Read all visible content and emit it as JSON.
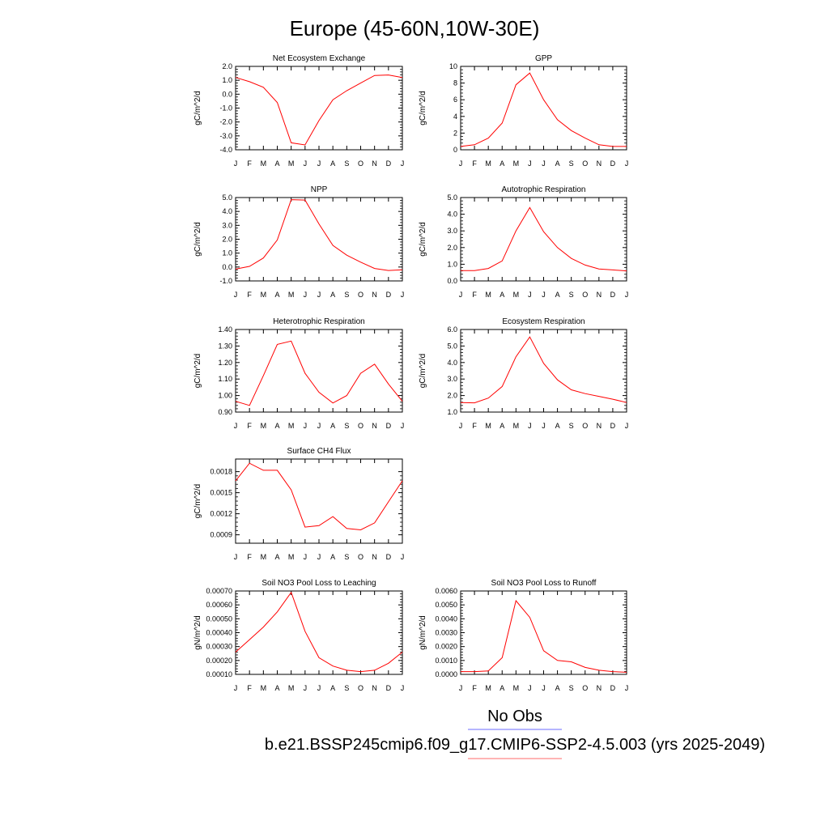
{
  "title": "Europe (45-60N,10W-30E)",
  "legend": {
    "entries": [
      {
        "label": "No Obs",
        "color": "#6b6bff"
      },
      {
        "label": "b.e21.BSSP245cmip6.f09_g17.CMIP6-SSP2-4.5.003 (yrs 2025-2049)",
        "color": "#ff6b6b"
      }
    ]
  },
  "colors": {
    "line": "#ff0000"
  },
  "chart_data": [
    {
      "type": "line",
      "title": "Net Ecosystem Exchange",
      "ylabel": "gC/m^2/d",
      "categories": [
        "J",
        "F",
        "M",
        "A",
        "M",
        "J",
        "J",
        "A",
        "S",
        "O",
        "N",
        "D",
        "J"
      ],
      "ylim": [
        -4.0,
        2.0
      ],
      "yticks": [
        2.0,
        1.0,
        0.0,
        -1.0,
        -2.0,
        -3.0,
        -4.0
      ],
      "ytick_labels": [
        "2.0",
        "1.0",
        "0.0",
        "-1.0",
        "-2.0",
        "-3.0",
        "-4.0"
      ],
      "series": [
        {
          "values": [
            1.2,
            0.9,
            0.5,
            -0.6,
            -3.5,
            -3.65,
            -1.9,
            -0.4,
            0.25,
            0.8,
            1.35,
            1.38,
            1.2
          ]
        }
      ]
    },
    {
      "type": "line",
      "title": "GPP",
      "ylabel": "gC/m^2/d",
      "categories": [
        "J",
        "F",
        "M",
        "A",
        "M",
        "J",
        "J",
        "A",
        "S",
        "O",
        "N",
        "D",
        "J"
      ],
      "ylim": [
        0,
        10
      ],
      "yticks": [
        10,
        8,
        6,
        4,
        2,
        0
      ],
      "ytick_labels": [
        "10",
        "8",
        "6",
        "4",
        "2",
        "0"
      ],
      "series": [
        {
          "values": [
            0.4,
            0.6,
            1.4,
            3.2,
            7.8,
            9.2,
            6.0,
            3.6,
            2.3,
            1.4,
            0.6,
            0.4,
            0.4
          ]
        }
      ]
    },
    {
      "type": "line",
      "title": "NPP",
      "ylabel": "gC/m^2/d",
      "categories": [
        "J",
        "F",
        "M",
        "A",
        "M",
        "J",
        "J",
        "A",
        "S",
        "O",
        "N",
        "D",
        "J"
      ],
      "ylim": [
        -1.0,
        5.0
      ],
      "yticks": [
        5.0,
        4.0,
        3.0,
        2.0,
        1.0,
        0.0,
        -1.0
      ],
      "ytick_labels": [
        "5.0",
        "4.0",
        "3.0",
        "2.0",
        "1.0",
        "0.0",
        "-1.0"
      ],
      "series": [
        {
          "values": [
            -0.15,
            0.05,
            0.65,
            1.95,
            4.85,
            4.82,
            3.1,
            1.55,
            0.85,
            0.35,
            -0.1,
            -0.25,
            -0.2
          ]
        }
      ]
    },
    {
      "type": "line",
      "title": "Autotrophic Respiration",
      "ylabel": "gC/m^2/d",
      "categories": [
        "J",
        "F",
        "M",
        "A",
        "M",
        "J",
        "J",
        "A",
        "S",
        "O",
        "N",
        "D",
        "J"
      ],
      "ylim": [
        0,
        5.0
      ],
      "yticks": [
        5.0,
        4.0,
        3.0,
        2.0,
        1.0,
        0.0
      ],
      "ytick_labels": [
        "5.0",
        "4.0",
        "3.0",
        "2.0",
        "1.0",
        "0.0"
      ],
      "series": [
        {
          "values": [
            0.62,
            0.62,
            0.75,
            1.2,
            3.0,
            4.4,
            2.95,
            2.0,
            1.35,
            0.95,
            0.72,
            0.66,
            0.6
          ]
        }
      ]
    },
    {
      "type": "line",
      "title": "Heterotrophic Respiration",
      "ylabel": "gC/m^2/d",
      "categories": [
        "J",
        "F",
        "M",
        "A",
        "M",
        "J",
        "J",
        "A",
        "S",
        "O",
        "N",
        "D",
        "J"
      ],
      "ylim": [
        0.9,
        1.4
      ],
      "yticks": [
        1.4,
        1.3,
        1.2,
        1.1,
        1.0,
        0.9
      ],
      "ytick_labels": [
        "1.40",
        "1.30",
        "1.20",
        "1.10",
        "1.00",
        "0.90"
      ],
      "series": [
        {
          "values": [
            0.965,
            0.94,
            1.12,
            1.31,
            1.33,
            1.135,
            1.02,
            0.955,
            1.0,
            1.135,
            1.19,
            1.07,
            0.965
          ]
        }
      ]
    },
    {
      "type": "line",
      "title": "Ecosystem Respiration",
      "ylabel": "gC/m^2/d",
      "categories": [
        "J",
        "F",
        "M",
        "A",
        "M",
        "J",
        "J",
        "A",
        "S",
        "O",
        "N",
        "D",
        "J"
      ],
      "ylim": [
        1.0,
        6.0
      ],
      "yticks": [
        6.0,
        5.0,
        4.0,
        3.0,
        2.0,
        1.0
      ],
      "ytick_labels": [
        "6.0",
        "5.0",
        "4.0",
        "3.0",
        "2.0",
        "1.0"
      ],
      "series": [
        {
          "values": [
            1.58,
            1.56,
            1.85,
            2.55,
            4.35,
            5.55,
            3.95,
            2.95,
            2.35,
            2.12,
            1.95,
            1.78,
            1.58
          ]
        }
      ]
    },
    {
      "type": "line",
      "title": "Surface CH4 Flux",
      "ylabel": "gC/m^2/d",
      "categories": [
        "J",
        "F",
        "M",
        "A",
        "M",
        "J",
        "J",
        "A",
        "S",
        "O",
        "N",
        "D",
        "J"
      ],
      "ylim": [
        0.00078,
        0.00198
      ],
      "yticks": [
        0.0018,
        0.0015,
        0.0012,
        0.0009
      ],
      "ytick_labels": [
        "0.0018",
        "0.0015",
        "0.0012",
        "0.0009"
      ],
      "series": [
        {
          "values": [
            0.00167,
            0.00192,
            0.00182,
            0.00182,
            0.00154,
            0.00101,
            0.00103,
            0.00116,
            0.00099,
            0.00097,
            0.00107,
            0.00137,
            0.00167
          ]
        }
      ]
    },
    {
      "type": "line",
      "title": "Soil NO3 Pool Loss to Leaching",
      "ylabel": "gN/m^2/d",
      "categories": [
        "J",
        "F",
        "M",
        "A",
        "M",
        "J",
        "J",
        "A",
        "S",
        "O",
        "N",
        "D",
        "J"
      ],
      "ylim": [
        0.0001,
        0.0007
      ],
      "yticks": [
        0.0007,
        0.0006,
        0.0005,
        0.0004,
        0.0003,
        0.0002,
        0.0001
      ],
      "ytick_labels": [
        "0.00070",
        "0.00060",
        "0.00050",
        "0.00040",
        "0.00030",
        "0.00020",
        "0.00010"
      ],
      "series": [
        {
          "values": [
            0.00026,
            0.00035,
            0.00044,
            0.00055,
            0.00069,
            0.00041,
            0.00022,
            0.00016,
            0.00013,
            0.00012,
            0.00013,
            0.00018,
            0.00026
          ]
        }
      ]
    },
    {
      "type": "line",
      "title": "Soil NO3 Pool Loss to Runoff",
      "ylabel": "gN/m^2/d",
      "categories": [
        "J",
        "F",
        "M",
        "A",
        "M",
        "J",
        "J",
        "A",
        "S",
        "O",
        "N",
        "D",
        "J"
      ],
      "ylim": [
        0,
        0.006
      ],
      "yticks": [
        0.006,
        0.005,
        0.004,
        0.003,
        0.002,
        0.001,
        0.0
      ],
      "ytick_labels": [
        "0.0060",
        "0.0050",
        "0.0040",
        "0.0030",
        "0.0020",
        "0.0010",
        "0.0000"
      ],
      "series": [
        {
          "values": [
            0.0002,
            0.0002,
            0.00025,
            0.0012,
            0.0053,
            0.0041,
            0.0017,
            0.001,
            0.0009,
            0.0005,
            0.0003,
            0.0002,
            0.00015
          ]
        }
      ]
    }
  ]
}
